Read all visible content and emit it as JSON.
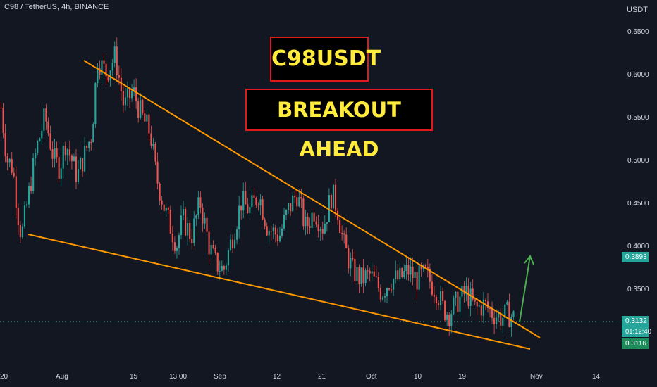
{
  "header": {
    "symbol": "C98 / TetherUS, 4h, BINANCE",
    "unit": "USDT"
  },
  "annotations": {
    "title": "C98USDT",
    "subtitle": "BREAKOUT AHEAD"
  },
  "price_tags": {
    "target": "0.3893",
    "current": "0.3132",
    "countdown": "01:12:40",
    "support": "0.3116"
  },
  "colors": {
    "background": "#131722",
    "up": "#26a69a",
    "down": "#ef5350",
    "trendline": "#ff9800",
    "arrow": "#4caf50",
    "banner_border": "#e0191d",
    "banner_text": "#ffeb3b"
  },
  "chart_data": {
    "type": "candlestick",
    "title": "C98 / TetherUS, 4h, BINANCE",
    "ylabel": "USDT",
    "ylim": [
      0.285,
      0.675
    ],
    "y_ticks": [
      "0.6500",
      "0.6000",
      "0.5500",
      "0.5000",
      "0.4500",
      "0.4000",
      "0.3500"
    ],
    "x_ticks": [
      "20",
      "Aug",
      "15",
      "13:00",
      "Sep",
      "12",
      "21",
      "Oct",
      "10",
      "19",
      "Nov",
      "14"
    ],
    "close_path": [
      [
        0.0,
        0.56
      ],
      [
        0.2,
        0.5
      ],
      [
        0.4,
        0.49
      ],
      [
        0.6,
        0.43
      ],
      [
        0.7,
        0.41
      ],
      [
        0.9,
        0.45
      ],
      [
        1.2,
        0.51
      ],
      [
        1.5,
        0.55
      ],
      [
        1.8,
        0.5
      ],
      [
        2.0,
        0.49
      ],
      [
        2.2,
        0.52
      ],
      [
        2.6,
        0.48
      ],
      [
        2.9,
        0.51
      ],
      [
        3.0,
        0.52
      ],
      [
        3.1,
        0.53
      ],
      [
        3.3,
        0.62
      ],
      [
        3.4,
        0.61
      ],
      [
        3.6,
        0.6
      ],
      [
        3.9,
        0.62
      ],
      [
        4.2,
        0.56
      ],
      [
        4.5,
        0.58
      ],
      [
        4.8,
        0.55
      ],
      [
        5.1,
        0.53
      ],
      [
        5.3,
        0.48
      ],
      [
        5.6,
        0.44
      ],
      [
        6.0,
        0.4
      ],
      [
        6.2,
        0.43
      ],
      [
        6.5,
        0.41
      ],
      [
        6.8,
        0.45
      ],
      [
        7.1,
        0.4
      ],
      [
        7.3,
        0.38
      ],
      [
        7.6,
        0.37
      ],
      [
        7.9,
        0.41
      ],
      [
        8.2,
        0.45
      ],
      [
        8.5,
        0.44
      ],
      [
        8.8,
        0.46
      ],
      [
        9.1,
        0.42
      ],
      [
        9.5,
        0.41
      ],
      [
        9.8,
        0.44
      ],
      [
        10.1,
        0.46
      ],
      [
        10.4,
        0.42
      ],
      [
        10.7,
        0.44
      ],
      [
        11.0,
        0.42
      ],
      [
        11.3,
        0.46
      ],
      [
        11.5,
        0.44
      ],
      [
        11.7,
        0.4
      ],
      [
        12.0,
        0.37
      ],
      [
        12.3,
        0.36
      ],
      [
        12.6,
        0.365
      ],
      [
        13.0,
        0.345
      ],
      [
        13.3,
        0.36
      ],
      [
        13.6,
        0.36
      ],
      [
        13.9,
        0.37
      ],
      [
        14.2,
        0.36
      ],
      [
        14.5,
        0.365
      ],
      [
        14.9,
        0.345
      ],
      [
        15.1,
        0.325
      ],
      [
        15.3,
        0.32
      ],
      [
        15.6,
        0.335
      ],
      [
        15.9,
        0.345
      ],
      [
        16.2,
        0.325
      ],
      [
        16.5,
        0.33
      ],
      [
        16.8,
        0.32
      ],
      [
        17.1,
        0.315
      ],
      [
        17.3,
        0.32
      ],
      [
        17.5,
        0.315
      ]
    ],
    "trendlines": [
      {
        "from": [
          "Aug",
          0.617
        ],
        "to": [
          "Nov",
          0.308
        ]
      },
      {
        "from": [
          "Jul 21",
          0.413
        ],
        "to": [
          "Nov",
          0.297
        ]
      }
    ],
    "projection": {
      "from": 0.313,
      "to": 0.39
    },
    "last_price": 0.3132,
    "grid": false,
    "legend": "none"
  }
}
